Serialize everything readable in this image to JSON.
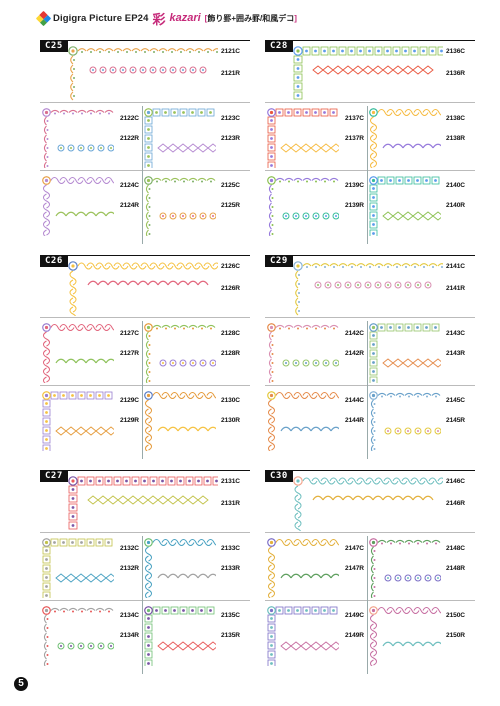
{
  "header": {
    "brand": "Digigra Picture EP24",
    "kanji": "彩",
    "kazari": "kazari",
    "subtitle": "飾り罫+囲み罫/和風デコ",
    "bracket_open": "[",
    "bracket_close": "]",
    "logo_colors": [
      "#e53935",
      "#1e88e5",
      "#43a047",
      "#fdd835"
    ]
  },
  "page_number": "5",
  "sections": [
    {
      "tag": "C25",
      "codes": [
        "2121C",
        "2121R",
        "2122C",
        "2122R",
        "2123C",
        "2123R",
        "2124C",
        "2124R",
        "2125C",
        "2125R"
      ]
    },
    {
      "tag": "C28",
      "codes": [
        "2136C",
        "2136R",
        "2137C",
        "2137R",
        "2138C",
        "2138R",
        "2139C",
        "2139R",
        "2140C",
        "2140R"
      ]
    },
    {
      "tag": "C26",
      "codes": [
        "2126C",
        "2126R",
        "2127C",
        "2127R",
        "2128C",
        "2128R",
        "2129C",
        "2129R",
        "2130C",
        "2130R"
      ]
    },
    {
      "tag": "C29",
      "codes": [
        "2141C",
        "2141R",
        "2142C",
        "2142R",
        "2143C",
        "2143R",
        "2144C",
        "2144R",
        "2145C",
        "2145R"
      ]
    },
    {
      "tag": "C27",
      "codes": [
        "2131C",
        "2131R",
        "2132C",
        "2132R",
        "2133C",
        "2133R",
        "2134C",
        "2134R",
        "2135C",
        "2135R"
      ]
    },
    {
      "tag": "C30",
      "codes": [
        "2146C",
        "2146R",
        "2147C",
        "2147R",
        "2148C",
        "2148R",
        "2149C",
        "2149R",
        "2150C",
        "2150R"
      ]
    }
  ],
  "ornament_palette": {
    "C25": [
      "#e8a24a",
      "#7fb069",
      "#d9708f",
      "#6aa6d6",
      "#b58ad1",
      "#9bc25b"
    ],
    "C28": [
      "#8cc152",
      "#5d9cec",
      "#e9573f",
      "#f6bb42",
      "#967adc",
      "#37bc9b"
    ],
    "C26": [
      "#f5c242",
      "#5b7fc7",
      "#e2667d",
      "#8fc25c",
      "#9a7fd1",
      "#e59b3c"
    ],
    "C29": [
      "#e3c93f",
      "#86b2d6",
      "#d98fb2",
      "#95c46a",
      "#e58b4b",
      "#68a0c9"
    ],
    "C27": [
      "#e85a5a",
      "#7a56a6",
      "#c2c24a",
      "#4aa2c2",
      "#a2a2a2",
      "#6fbf73"
    ],
    "C30": [
      "#6fbfbf",
      "#f2a68f",
      "#e3b03c",
      "#5d9e5d",
      "#7c6fc7",
      "#c76fa2"
    ]
  }
}
